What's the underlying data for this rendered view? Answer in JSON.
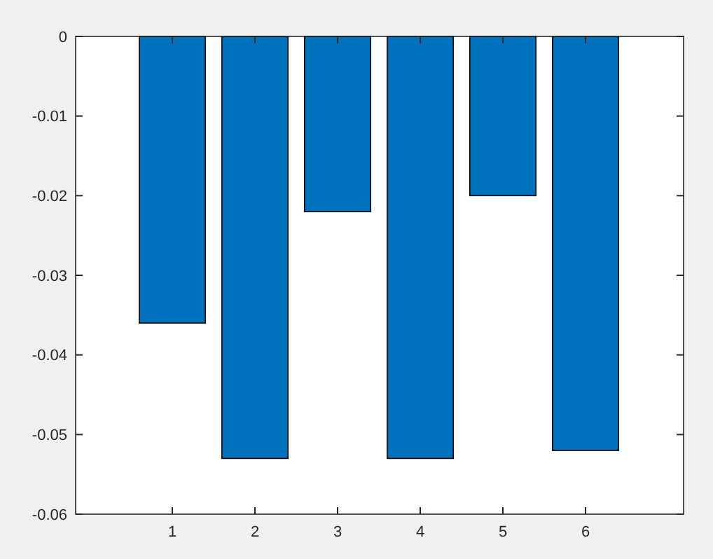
{
  "chart_data": {
    "type": "bar",
    "categories": [
      "1",
      "2",
      "3",
      "4",
      "5",
      "6"
    ],
    "values": [
      -0.036,
      -0.053,
      -0.022,
      -0.053,
      -0.02,
      -0.052
    ],
    "color": "#0072bd",
    "ylim": [
      -0.06,
      0
    ],
    "yticks": [
      -0.06,
      -0.05,
      -0.04,
      -0.03,
      -0.02,
      -0.01,
      0
    ],
    "grid": false
  }
}
